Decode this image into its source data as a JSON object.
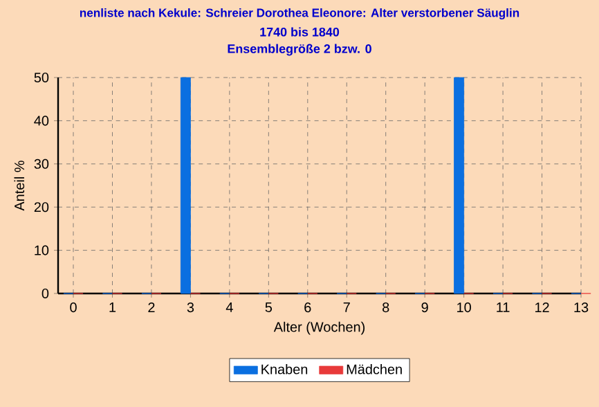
{
  "chart_data": {
    "type": "bar",
    "title": "nenliste nach Kekule: Schreier Dorothea Eleonore: Alter verstorbener Säuglin",
    "subtitle": "1740 bis 1840",
    "annotations": [
      "Ensemblegröße 2 bzw. 0"
    ],
    "xlabel": "Alter (Wochen)",
    "ylabel": "Anteil %",
    "categories": [
      "0",
      "1",
      "2",
      "3",
      "4",
      "5",
      "6",
      "7",
      "8",
      "9",
      "10",
      "11",
      "12",
      "13"
    ],
    "series": [
      {
        "name": "Knaben",
        "color": "#0a6fe0",
        "values": [
          0,
          0,
          0,
          50,
          0,
          0,
          0,
          0,
          0,
          0,
          50,
          0,
          0,
          0
        ]
      },
      {
        "name": "Mädchen",
        "color": "#e83a3a",
        "values": [
          0,
          0,
          0,
          0,
          0,
          0,
          0,
          0,
          0,
          0,
          0,
          0,
          0,
          0
        ]
      }
    ],
    "ylim": [
      0,
      50
    ],
    "yticks": [
      0,
      10,
      20,
      30,
      40,
      50
    ],
    "grid": true,
    "legend": "bottom"
  }
}
